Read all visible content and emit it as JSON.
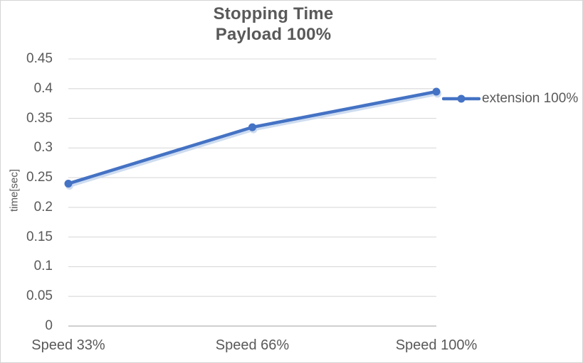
{
  "chart": {
    "title_line1": "Stopping Time",
    "title_line2": "Payload 100%"
  },
  "legend": {
    "position": "right",
    "items": [
      {
        "label": "extension 100%",
        "color": "#4472C4"
      }
    ]
  },
  "chart_data": {
    "type": "line",
    "title": "Stopping Time Payload 100%",
    "categories": [
      "Speed 33%",
      "Speed 66%",
      "Speed 100%"
    ],
    "series": [
      {
        "name": "extension 100%",
        "color": "#4472C4",
        "values": [
          0.24,
          0.335,
          0.395
        ]
      }
    ],
    "xlabel": "",
    "ylabel": "time[sec]",
    "ylim": [
      0,
      0.45
    ],
    "yticks": [
      0,
      0.05,
      0.1,
      0.15,
      0.2,
      0.25,
      0.3,
      0.35,
      0.4,
      0.45
    ],
    "ytick_labels": [
      "0",
      "0.05",
      "0.1",
      "0.15",
      "0.2",
      "0.25",
      "0.3",
      "0.35",
      "0.4",
      "0.45"
    ],
    "grid": true,
    "marker": "circle",
    "legend_position": "right"
  },
  "colors": {
    "series": "#4472C4",
    "series_shadow": "#c6d6ed",
    "gridline": "#d9d9d9",
    "axis_line": "#bfbfbf",
    "text": "#595959",
    "chart_border": "#d5d5d5",
    "background": "#ffffff"
  }
}
